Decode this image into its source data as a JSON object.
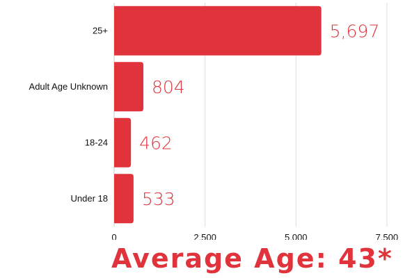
{
  "colors": {
    "bar": "#e0333b",
    "label": "#e0333b",
    "grid": "#dddddd",
    "axis": "#cccccc",
    "text": "#111111",
    "banner": "#e0333b"
  },
  "chart_data": {
    "type": "bar",
    "orientation": "horizontal",
    "categories": [
      "25+",
      "Adult Age Unknown",
      "18-24",
      "Under 18"
    ],
    "values": [
      5697,
      804,
      462,
      533
    ],
    "value_labels": [
      "5,697",
      "804",
      "462",
      "533"
    ],
    "xlim": [
      0,
      8000
    ],
    "xticks": [
      0,
      2500,
      5000,
      7500
    ],
    "xtick_labels": [
      "0",
      "2,500",
      "5,000",
      "7,500"
    ],
    "grid": true,
    "title": "",
    "xlabel": "",
    "ylabel": ""
  },
  "banner": {
    "text": "Average Age: 43*"
  }
}
